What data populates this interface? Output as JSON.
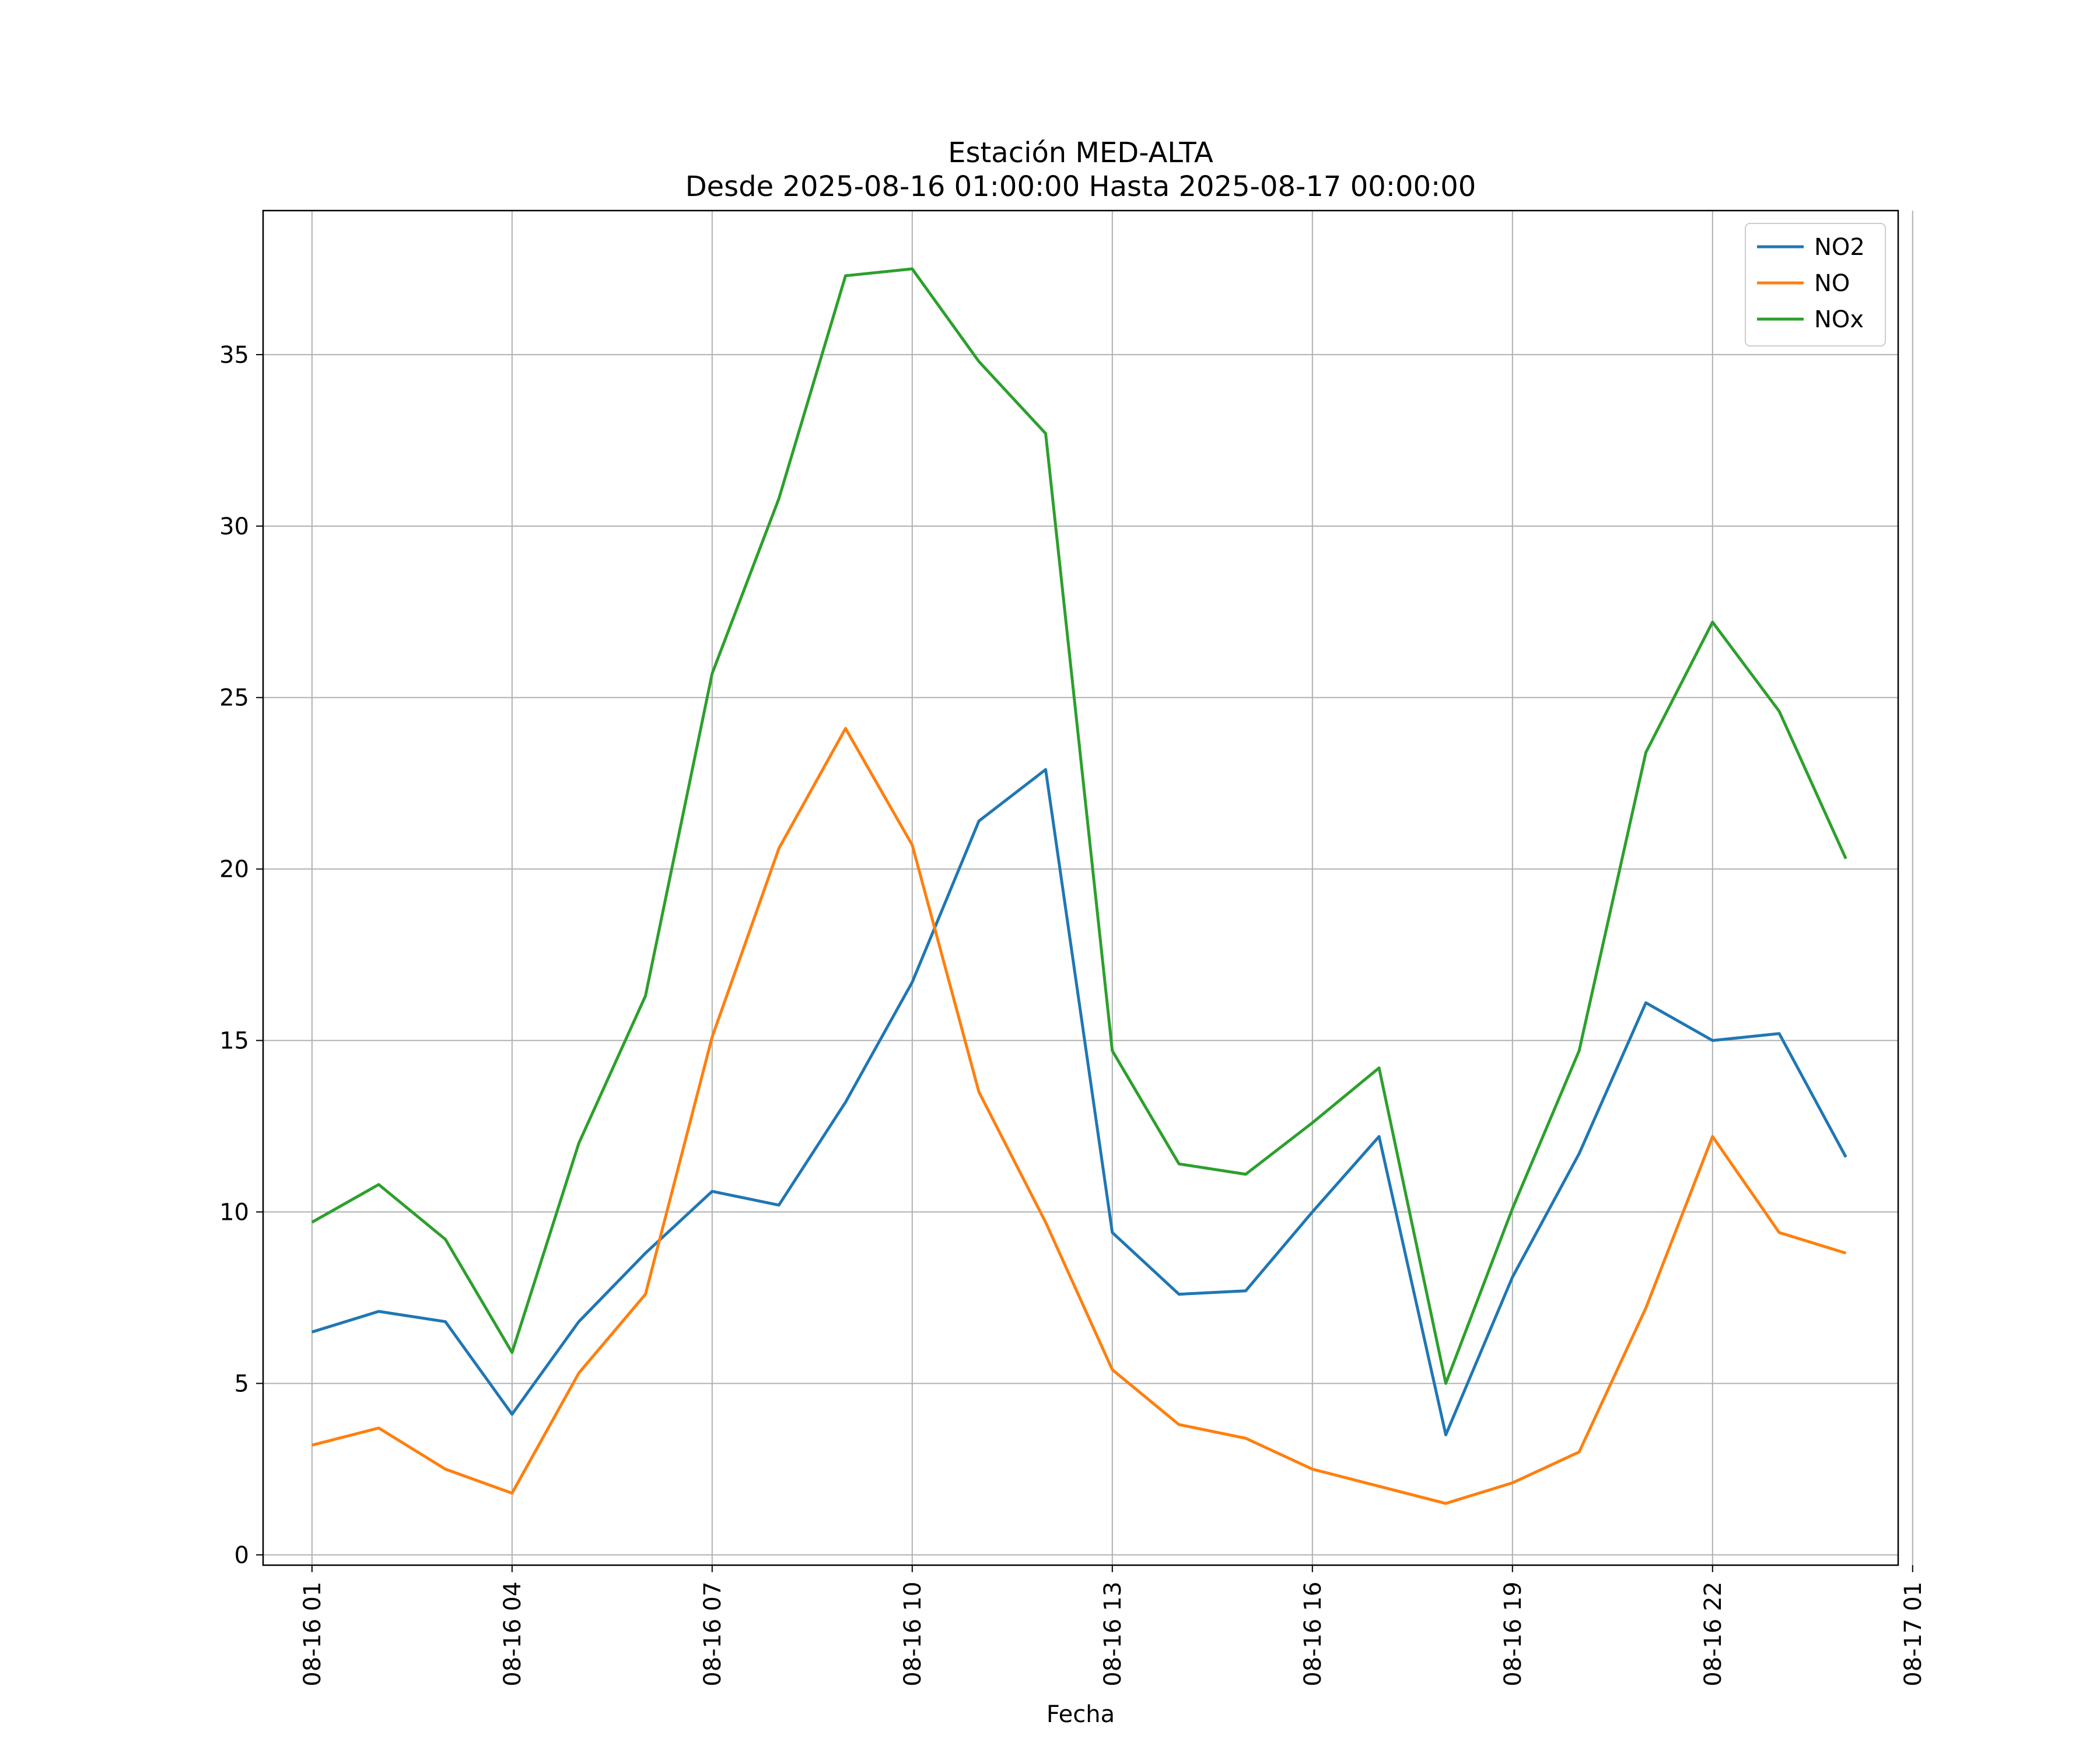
{
  "chart_data": {
    "type": "line",
    "title": "Estación MED-ALTA",
    "subtitle": "Desde 2025-08-16 01:00:00 Hasta 2025-08-17 00:00:00",
    "xlabel": "Fecha",
    "ylabel": "",
    "x": [
      "2025-08-16 01:00",
      "2025-08-16 02:00",
      "2025-08-16 03:00",
      "2025-08-16 04:00",
      "2025-08-16 05:00",
      "2025-08-16 06:00",
      "2025-08-16 07:00",
      "2025-08-16 08:00",
      "2025-08-16 09:00",
      "2025-08-16 10:00",
      "2025-08-16 11:00",
      "2025-08-16 12:00",
      "2025-08-16 13:00",
      "2025-08-16 14:00",
      "2025-08-16 15:00",
      "2025-08-16 16:00",
      "2025-08-16 17:00",
      "2025-08-16 18:00",
      "2025-08-16 19:00",
      "2025-08-16 20:00",
      "2025-08-16 21:00",
      "2025-08-16 22:00",
      "2025-08-16 23:00",
      "2025-08-17 00:00"
    ],
    "xlim": [
      "2025-08-16 00:16",
      "2025-08-17 00:47"
    ],
    "ylim": [
      -0.3,
      39.2
    ],
    "x_ticks": [
      {
        "x": "2025-08-16 01:00",
        "label": "08-16 01"
      },
      {
        "x": "2025-08-16 04:00",
        "label": "08-16 04"
      },
      {
        "x": "2025-08-16 07:00",
        "label": "08-16 07"
      },
      {
        "x": "2025-08-16 10:00",
        "label": "08-16 10"
      },
      {
        "x": "2025-08-16 13:00",
        "label": "08-16 13"
      },
      {
        "x": "2025-08-16 16:00",
        "label": "08-16 16"
      },
      {
        "x": "2025-08-16 19:00",
        "label": "08-16 19"
      },
      {
        "x": "2025-08-16 22:00",
        "label": "08-16 22"
      },
      {
        "x": "2025-08-17 01:00",
        "label": "08-17 01"
      }
    ],
    "y_ticks": [
      0,
      5,
      10,
      15,
      20,
      25,
      30,
      35
    ],
    "grid": true,
    "legend_position": "top-right",
    "series": [
      {
        "name": "NO2",
        "color": "#1f77b4",
        "values": [
          6.5,
          7.1,
          6.8,
          4.1,
          6.8,
          8.8,
          10.6,
          10.2,
          13.2,
          16.7,
          21.4,
          22.9,
          9.4,
          7.6,
          7.7,
          10.0,
          12.2,
          3.5,
          8.1,
          11.7,
          16.1,
          15.0,
          15.2,
          11.6
        ]
      },
      {
        "name": "NO",
        "color": "#ff7f0e",
        "values": [
          3.2,
          3.7,
          2.5,
          1.8,
          5.3,
          7.6,
          15.1,
          20.6,
          24.1,
          20.7,
          13.5,
          9.7,
          5.4,
          3.8,
          3.4,
          2.5,
          2.0,
          1.5,
          2.1,
          3.0,
          7.2,
          12.2,
          9.4,
          8.8
        ]
      },
      {
        "name": "NOx",
        "color": "#2ca02c",
        "values": [
          9.7,
          10.8,
          9.2,
          5.9,
          12.0,
          16.3,
          25.7,
          30.8,
          37.3,
          37.5,
          34.8,
          32.7,
          14.7,
          11.4,
          11.1,
          12.6,
          14.2,
          5.0,
          10.1,
          14.7,
          23.4,
          27.2,
          24.6,
          20.3
        ]
      }
    ]
  }
}
